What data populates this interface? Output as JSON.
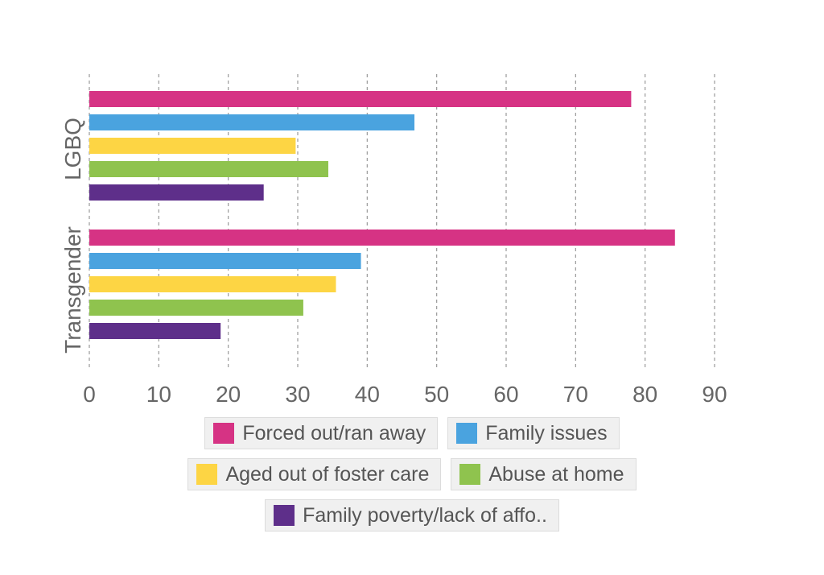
{
  "chart_data": {
    "type": "bar",
    "orientation": "horizontal",
    "categories": [
      "LGBQ",
      "Transgender"
    ],
    "series": [
      {
        "name": "Forced out/ran away",
        "color": "#d63384",
        "values": [
          78,
          84.3
        ]
      },
      {
        "name": "Family issues",
        "color": "#4aa3df",
        "values": [
          46.8,
          39.1
        ]
      },
      {
        "name": "Aged out of foster care",
        "color": "#fdd544",
        "values": [
          29.7,
          35.5
        ]
      },
      {
        "name": "Abuse at home",
        "color": "#8fc34e",
        "values": [
          34.4,
          30.8
        ]
      },
      {
        "name": "Family poverty/lack of affo..",
        "color": "#5e2f8a",
        "values": [
          25.1,
          18.9
        ]
      }
    ],
    "xticks": [
      "0",
      "10",
      "20",
      "30",
      "40",
      "50",
      "60",
      "70",
      "80",
      "90"
    ],
    "xlim": [
      0,
      90
    ],
    "grid": true,
    "legend_position": "bottom"
  }
}
